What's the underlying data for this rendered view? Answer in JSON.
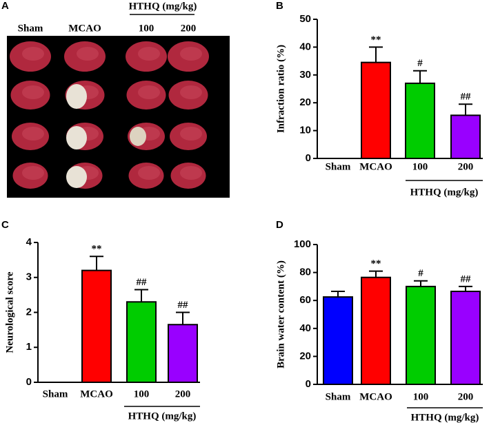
{
  "image_panel": {
    "panel_label": "A",
    "group_label": "HTHQ (mg/kg)",
    "column_labels": [
      "Sham",
      "MCAO",
      "100",
      "200"
    ]
  },
  "chart_data": [
    {
      "type": "bar",
      "panel_label": "B",
      "ylabel": "Infraction ratio (%)",
      "group_label": "HTHQ (mg/kg)",
      "categories": [
        "Sham",
        "MCAO",
        "100",
        "200"
      ],
      "values": [
        0,
        34.5,
        27,
        15.5
      ],
      "errors": [
        null,
        5.5,
        4.5,
        4
      ],
      "annotations": [
        null,
        "**",
        "#",
        "##"
      ],
      "colors": [
        "#0000ff",
        "#ff0000",
        "#00cc00",
        "#9900ff"
      ],
      "ylim": [
        0,
        50
      ],
      "yticks": [
        0,
        10,
        20,
        30,
        40,
        50
      ]
    },
    {
      "type": "bar",
      "panel_label": "C",
      "ylabel": "Neurological score",
      "group_label": "HTHQ (mg/kg)",
      "categories": [
        "Sham",
        "MCAO",
        "100",
        "200"
      ],
      "values": [
        0,
        3.2,
        2.3,
        1.65
      ],
      "errors": [
        null,
        0.4,
        0.35,
        0.35
      ],
      "annotations": [
        null,
        "**",
        "##",
        "##"
      ],
      "colors": [
        "#0000ff",
        "#ff0000",
        "#00cc00",
        "#9900ff"
      ],
      "ylim": [
        0,
        4
      ],
      "yticks": [
        0,
        1,
        2,
        3,
        4
      ]
    },
    {
      "type": "bar",
      "panel_label": "D",
      "ylabel": "Brain water content (%)",
      "group_label": "HTHQ (mg/kg)",
      "categories": [
        "Sham",
        "MCAO",
        "100",
        "200"
      ],
      "values": [
        62.5,
        76.5,
        70,
        66.5
      ],
      "errors": [
        4,
        4.5,
        4,
        3.5
      ],
      "annotations": [
        null,
        "**",
        "#",
        "##"
      ],
      "colors": [
        "#0000ff",
        "#ff0000",
        "#00cc00",
        "#9900ff"
      ],
      "ylim": [
        0,
        100
      ],
      "yticks": [
        0,
        20,
        40,
        60,
        80,
        100
      ]
    }
  ]
}
